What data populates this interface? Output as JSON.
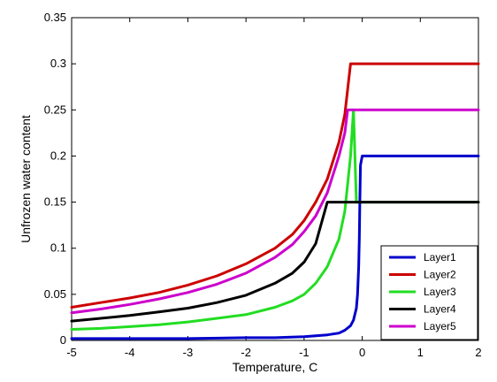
{
  "chart_data": {
    "type": "line",
    "xlabel": "Temperature, C",
    "ylabel": "Unfrozen water content",
    "xlim": [
      -5,
      2
    ],
    "ylim": [
      0,
      0.35
    ],
    "xticks": [
      "-5",
      "-4",
      "-3",
      "-2",
      "-1",
      "0",
      "1",
      "2"
    ],
    "yticks": [
      "0",
      "0.05",
      "0.1",
      "0.15",
      "0.2",
      "0.25",
      "0.3",
      "0.35"
    ],
    "grid": false,
    "legend_position": "bottom-right",
    "series": [
      {
        "name": "Layer1",
        "color": "#0000cc",
        "x": [
          -5,
          -4,
          -3,
          -2,
          -1.5,
          -1,
          -0.6,
          -0.4,
          -0.3,
          -0.2,
          -0.15,
          -0.1,
          -0.08,
          -0.06,
          -0.05,
          -0.04,
          -0.03,
          0,
          2
        ],
        "y": [
          0.002,
          0.002,
          0.002,
          0.003,
          0.003,
          0.004,
          0.006,
          0.008,
          0.011,
          0.016,
          0.022,
          0.035,
          0.05,
          0.08,
          0.11,
          0.15,
          0.19,
          0.2,
          0.2
        ]
      },
      {
        "name": "Layer2",
        "color": "#cc0000",
        "x": [
          -5,
          -4.5,
          -4,
          -3.5,
          -3,
          -2.5,
          -2,
          -1.5,
          -1.2,
          -1,
          -0.8,
          -0.6,
          -0.4,
          -0.3,
          -0.2,
          2
        ],
        "y": [
          0.036,
          0.041,
          0.046,
          0.052,
          0.06,
          0.07,
          0.083,
          0.1,
          0.115,
          0.13,
          0.15,
          0.175,
          0.215,
          0.245,
          0.3,
          0.3
        ]
      },
      {
        "name": "Layer3",
        "color": "#22dd22",
        "x": [
          -5,
          -4.5,
          -4,
          -3.5,
          -3,
          -2.5,
          -2,
          -1.5,
          -1.2,
          -1,
          -0.8,
          -0.6,
          -0.4,
          -0.3,
          -0.2,
          -0.15,
          -0.1,
          2
        ],
        "y": [
          0.012,
          0.013,
          0.015,
          0.017,
          0.02,
          0.024,
          0.028,
          0.036,
          0.043,
          0.05,
          0.062,
          0.08,
          0.11,
          0.14,
          0.2,
          0.25,
          0.15,
          0.15
        ]
      },
      {
        "name": "Layer4",
        "color": "#000000",
        "x": [
          -5,
          -4.5,
          -4,
          -3.5,
          -3,
          -2.5,
          -2,
          -1.5,
          -1.2,
          -1,
          -0.8,
          -0.6,
          2
        ],
        "y": [
          0.021,
          0.024,
          0.027,
          0.031,
          0.035,
          0.041,
          0.049,
          0.062,
          0.073,
          0.085,
          0.105,
          0.15,
          0.15
        ]
      },
      {
        "name": "Layer5",
        "color": "#cc00cc",
        "x": [
          -5,
          -4.5,
          -4,
          -3.5,
          -3,
          -2.5,
          -2,
          -1.5,
          -1.2,
          -1,
          -0.8,
          -0.6,
          -0.4,
          -0.3,
          -0.25,
          2
        ],
        "y": [
          0.03,
          0.034,
          0.039,
          0.045,
          0.052,
          0.061,
          0.073,
          0.09,
          0.104,
          0.118,
          0.135,
          0.16,
          0.2,
          0.225,
          0.25,
          0.25
        ]
      }
    ]
  }
}
